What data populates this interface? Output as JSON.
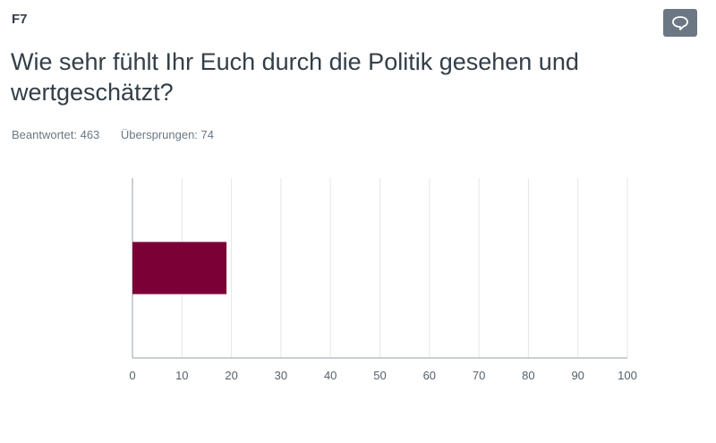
{
  "question": {
    "number": "F7",
    "title": "Wie sehr fühlt Ihr Euch durch die Politik gesehen und wertgeschätzt?"
  },
  "stats": {
    "answered": "Beantwortet: 463",
    "skipped": "Übersprungen: 74"
  },
  "comment_icon": "speech-bubble-icon",
  "colors": {
    "bar": "#7b0036",
    "grid": "#e3e6e8",
    "axis": "#9aa1a8",
    "button": "#6b7883"
  },
  "chart_data": {
    "type": "bar",
    "orientation": "horizontal",
    "categories": [
      ""
    ],
    "values": [
      19
    ],
    "xlim": [
      0,
      100
    ],
    "xticks": [
      0,
      10,
      20,
      30,
      40,
      50,
      60,
      70,
      80,
      90,
      100
    ],
    "title": "",
    "xlabel": "",
    "ylabel": "",
    "grid": true
  }
}
